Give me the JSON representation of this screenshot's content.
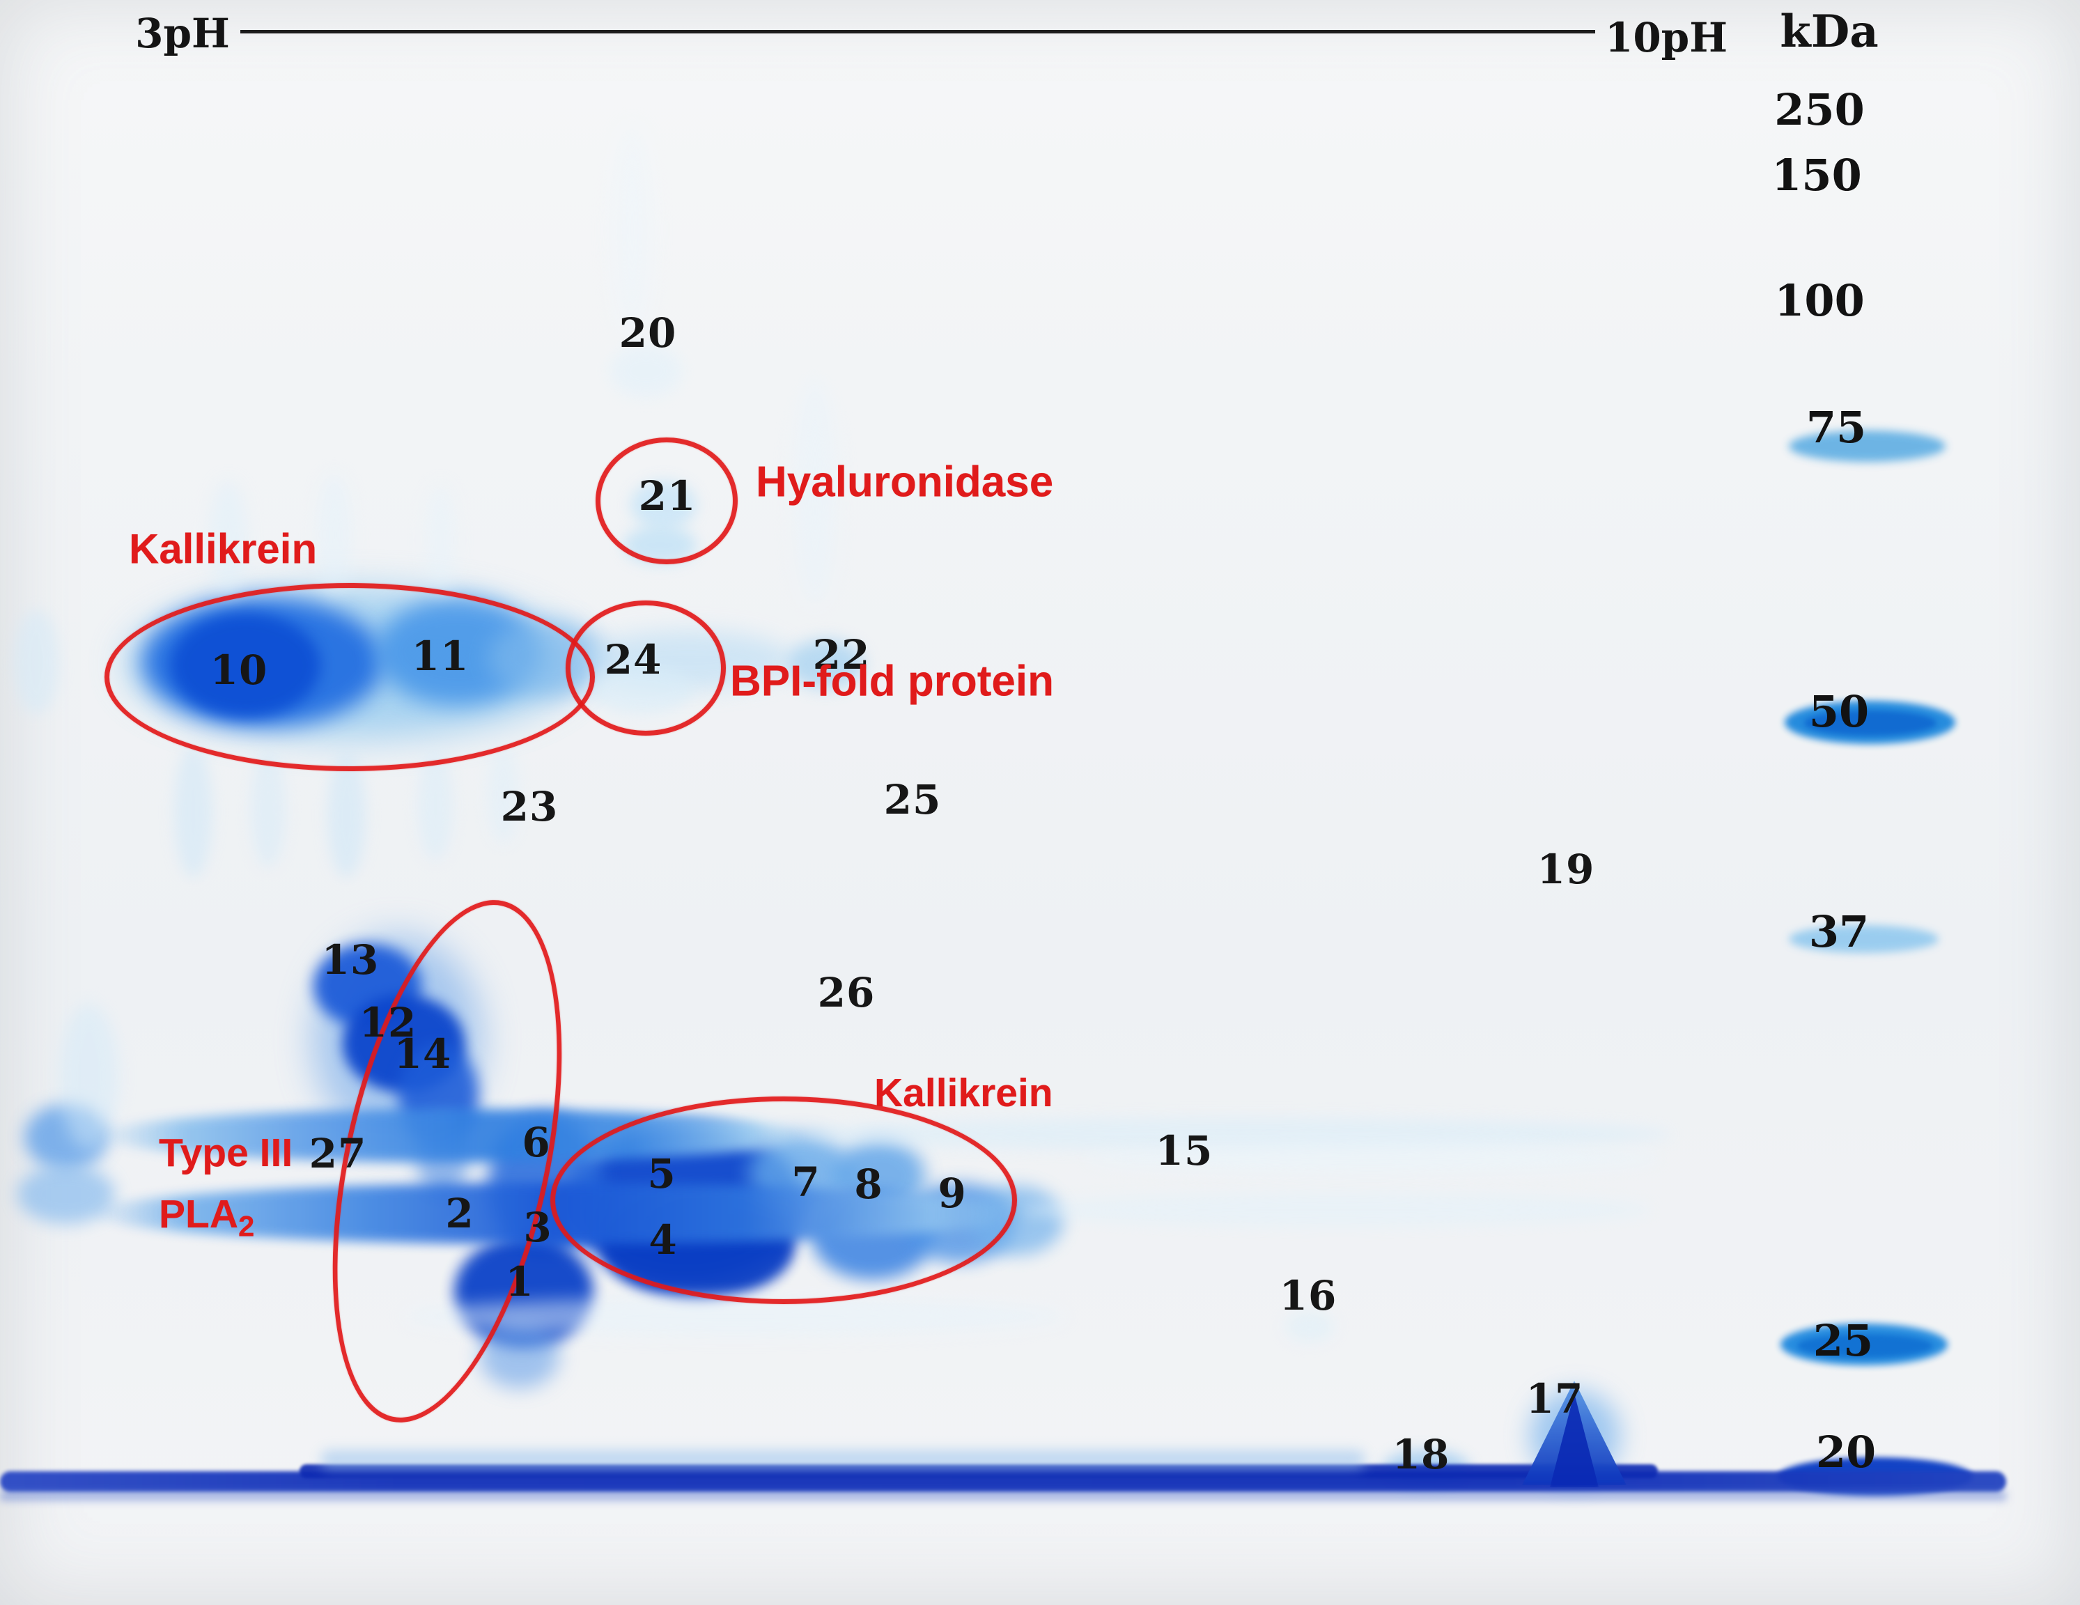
{
  "figure": {
    "ph_scale": {
      "left": "3pH",
      "right": "10pH"
    },
    "mw_unit": "kDa",
    "mw_markers": {
      "m250": "250",
      "m150": "150",
      "m100": "100",
      "m75": "75",
      "m50": "50",
      "m37": "37",
      "m25": "25",
      "m20": "20"
    },
    "spots": {
      "s1": "1",
      "s2": "2",
      "s3": "3",
      "s4": "4",
      "s5": "5",
      "s6": "6",
      "s7": "7",
      "s8": "8",
      "s9": "9",
      "s10": "10",
      "s11": "11",
      "s12": "12",
      "s13": "13",
      "s14": "14",
      "s15": "15",
      "s16": "16",
      "s17": "17",
      "s18": "18",
      "s19": "19",
      "s20": "20",
      "s21": "21",
      "s22": "22",
      "s23": "23",
      "s24": "24",
      "s25": "25",
      "s26": "26",
      "s27": "27"
    },
    "annotations": {
      "kallikrein_upper": "Kallikrein",
      "hyaluronidase": "Hyaluronidase",
      "bpi_fold": "BPI-fold protein",
      "type3_line1": "Type III",
      "pla2_main": "PLA",
      "pla2_sub": "2",
      "kallikrein_lower": "Kallikrein"
    },
    "colors": {
      "annotation_red": "#e01b1b",
      "label_black": "#161616",
      "stain_blue_dark": "#0a3fc4",
      "stain_blue_mid": "#2e7fe0",
      "stain_blue_light": "#cfe6f7",
      "running_front_blue": "#0e2cb6"
    }
  }
}
